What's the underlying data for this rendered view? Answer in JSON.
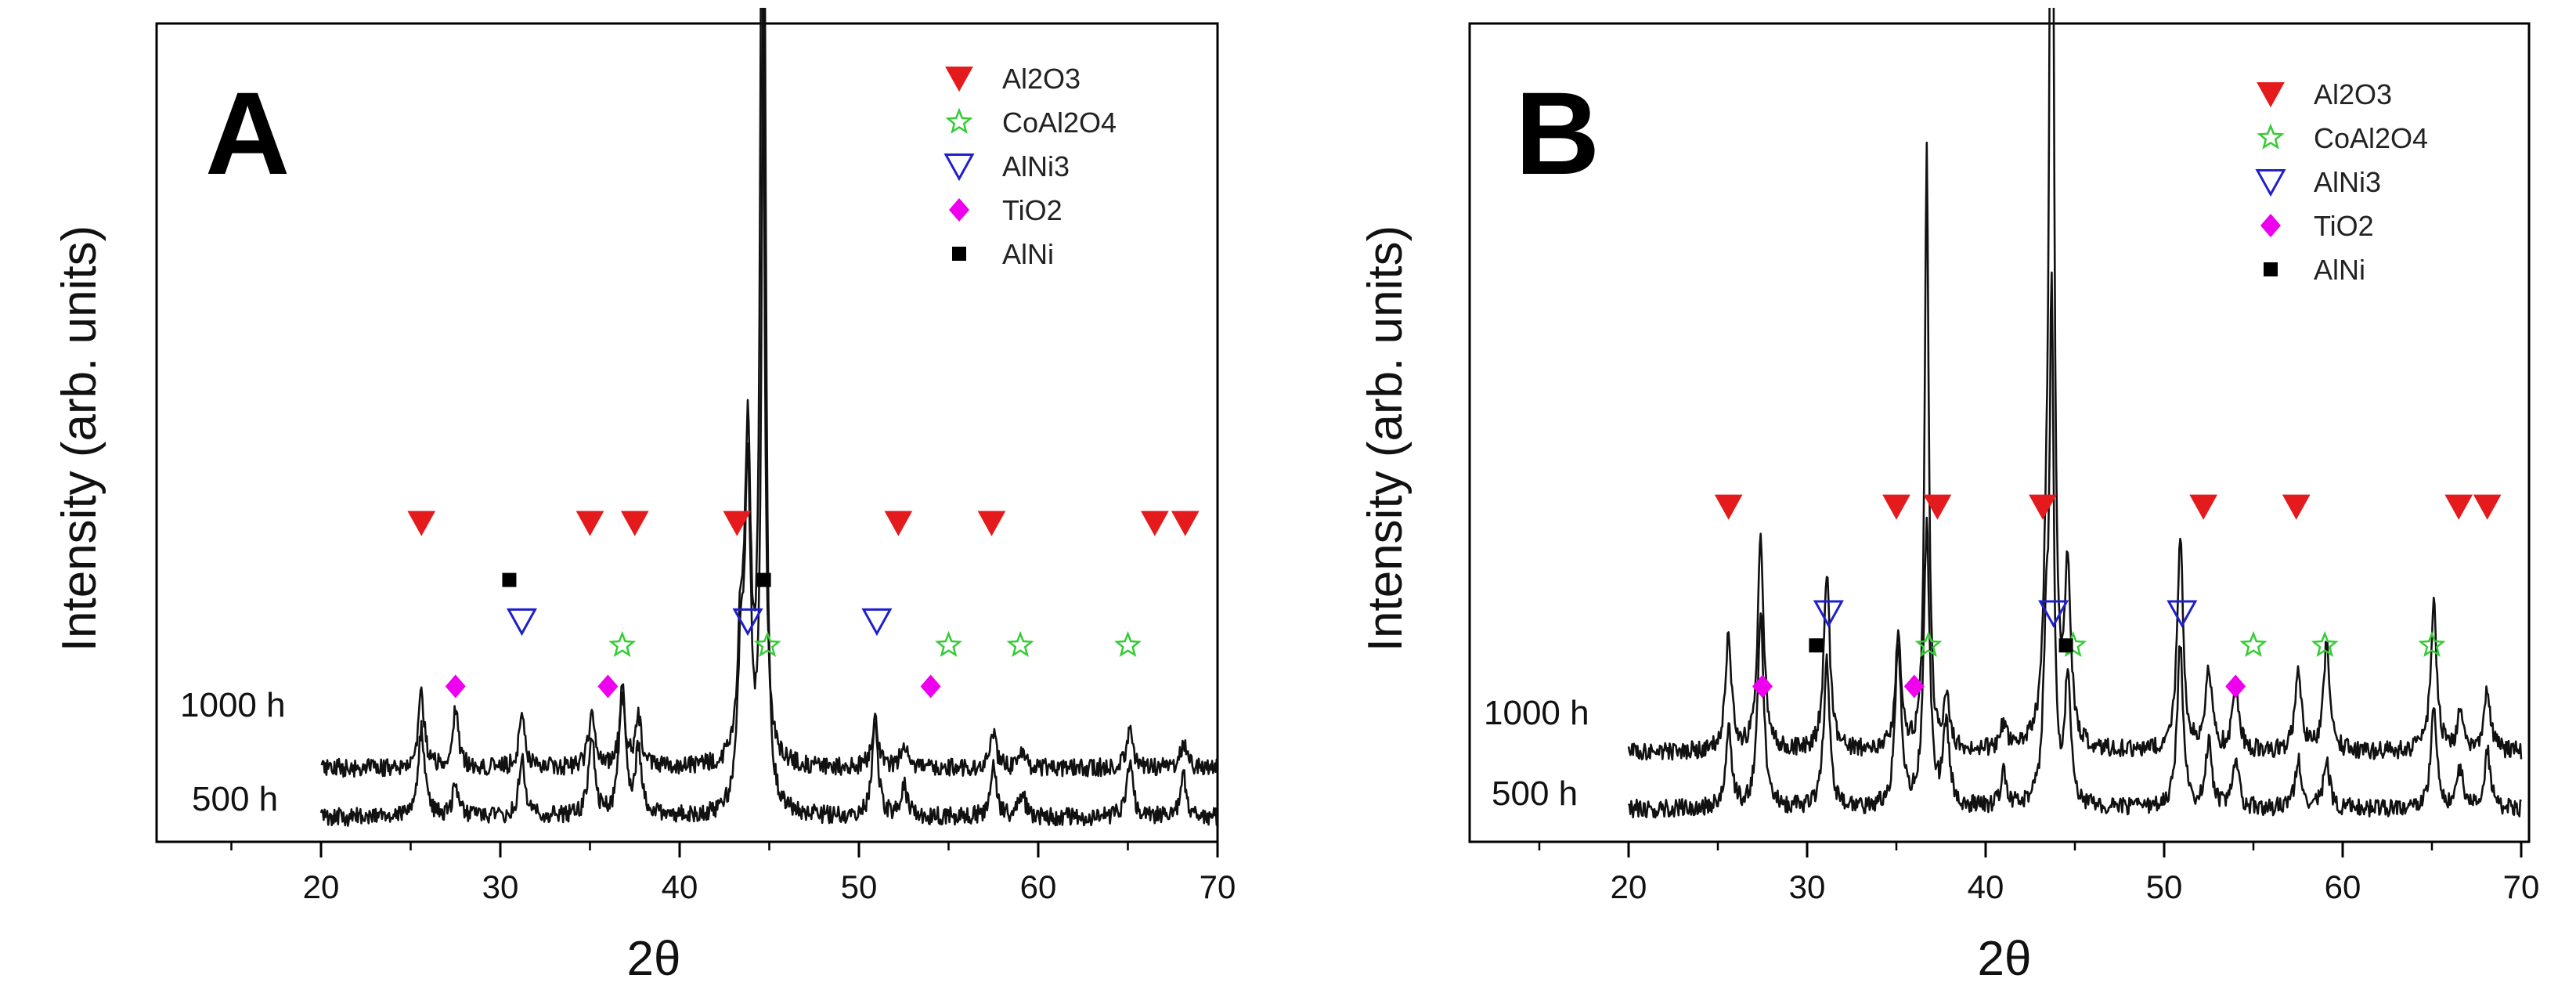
{
  "colors": {
    "Al2O3": "#e41a1c",
    "CoAl2O4": "#33cc33",
    "AlNi3": "#1f1fcc",
    "TiO2": "#ee00ee",
    "AlNi": "#000000",
    "trace": "#111111"
  },
  "chart_data": [
    {
      "type": "line",
      "panel": "A",
      "xlabel": "2θ",
      "ylabel": "Intensity (arb. units)",
      "xlim": [
        12,
        70
      ],
      "ylim": [
        0,
        100
      ],
      "xticks": [
        20,
        30,
        40,
        50,
        60,
        70
      ],
      "legend": {
        "placement": "top-right",
        "entries": [
          {
            "name": "Al2O3",
            "marker": "triangle-down-filled"
          },
          {
            "name": "CoAl2O4",
            "marker": "star-open"
          },
          {
            "name": "AlNi3",
            "marker": "triangle-down-open"
          },
          {
            "name": "TiO2",
            "marker": "diamond-filled"
          },
          {
            "name": "AlNi",
            "marker": "square-filled"
          }
        ]
      },
      "series": [
        {
          "name": "1000 h",
          "baseline": 9,
          "peaks": [
            [
              25.6,
              9
            ],
            [
              27.5,
              7
            ],
            [
              31.2,
              6
            ],
            [
              35.1,
              7
            ],
            [
              36.8,
              8
            ],
            [
              37.7,
              6
            ],
            [
              43.4,
              14
            ],
            [
              43.8,
              38
            ],
            [
              44.6,
              120
            ],
            [
              50.9,
              6
            ],
            [
              52.5,
              3
            ],
            [
              57.5,
              4
            ],
            [
              59.1,
              2
            ],
            [
              65.1,
              5
            ],
            [
              68.1,
              3
            ]
          ]
        },
        {
          "name": "500 h",
          "baseline": 3,
          "peaks": [
            [
              25.6,
              11
            ],
            [
              27.5,
              4
            ],
            [
              31.2,
              7
            ],
            [
              35.1,
              10
            ],
            [
              36.8,
              16
            ],
            [
              37.7,
              8
            ],
            [
              43.4,
              16
            ],
            [
              43.8,
              40
            ],
            [
              44.7,
              120
            ],
            [
              50.9,
              11
            ],
            [
              52.5,
              4
            ],
            [
              57.5,
              6
            ],
            [
              59.1,
              3
            ],
            [
              65.1,
              7
            ],
            [
              68.1,
              5
            ]
          ]
        }
      ],
      "phase_markers": {
        "Al2O3": {
          "x": [
            25.6,
            35.0,
            37.5,
            43.2,
            52.2,
            57.4,
            66.5,
            68.2
          ],
          "y": 39
        },
        "CoAl2O4": {
          "x": [
            36.8,
            44.9,
            55.0,
            59.0,
            65.0
          ],
          "y": 24
        },
        "AlNi3": {
          "x": [
            31.2,
            43.8,
            51.0
          ],
          "y": 27
        },
        "TiO2": {
          "x": [
            27.5,
            36.0,
            54.0
          ],
          "y": 19
        },
        "AlNi": {
          "x": [
            30.5,
            44.7
          ],
          "y": 32
        }
      }
    },
    {
      "type": "line",
      "panel": "B",
      "xlabel": "2θ",
      "ylabel": "Intensity (arb. units)",
      "xlim": [
        12,
        70
      ],
      "ylim": [
        0,
        100
      ],
      "xticks": [
        20,
        30,
        40,
        50,
        60,
        70
      ],
      "legend": {
        "placement": "top-right",
        "entries": [
          {
            "name": "Al2O3",
            "marker": "triangle-down-filled"
          },
          {
            "name": "CoAl2O4",
            "marker": "star-open"
          },
          {
            "name": "AlNi3",
            "marker": "triangle-down-open"
          },
          {
            "name": "TiO2",
            "marker": "diamond-filled"
          },
          {
            "name": "AlNi",
            "marker": "square-filled"
          }
        ]
      },
      "series": [
        {
          "name": "1000 h",
          "baseline": 11,
          "peaks": [
            [
              25.6,
              14
            ],
            [
              27.4,
              26
            ],
            [
              31.1,
              22
            ],
            [
              35.1,
              14
            ],
            [
              36.7,
              73
            ],
            [
              37.8,
              6
            ],
            [
              41.0,
              3
            ],
            [
              43.4,
              14
            ],
            [
              43.7,
              150
            ],
            [
              44.6,
              21
            ],
            [
              50.9,
              26
            ],
            [
              52.5,
              10
            ],
            [
              54.0,
              8
            ],
            [
              57.5,
              10
            ],
            [
              59.1,
              13
            ],
            [
              65.1,
              18
            ],
            [
              66.6,
              5
            ],
            [
              68.1,
              8
            ]
          ]
        },
        {
          "name": "500 h",
          "baseline": 4,
          "peaks": [
            [
              25.6,
              10
            ],
            [
              27.4,
              24
            ],
            [
              31.1,
              18
            ],
            [
              35.1,
              20
            ],
            [
              36.7,
              34
            ],
            [
              37.8,
              10
            ],
            [
              41.0,
              4
            ],
            [
              43.4,
              18
            ],
            [
              43.7,
              60
            ],
            [
              44.6,
              16
            ],
            [
              50.9,
              20
            ],
            [
              52.5,
              8
            ],
            [
              54.0,
              6
            ],
            [
              57.5,
              6
            ],
            [
              59.1,
              6
            ],
            [
              65.1,
              12
            ],
            [
              66.6,
              5
            ],
            [
              68.1,
              7
            ]
          ]
        }
      ],
      "phase_markers": {
        "Al2O3": {
          "x": [
            25.6,
            35.0,
            37.3,
            43.2,
            52.2,
            57.4,
            66.5,
            68.1
          ],
          "y": 41
        },
        "CoAl2O4": {
          "x": [
            36.8,
            44.9,
            55.0,
            59.0,
            65.0
          ],
          "y": 24
        },
        "AlNi3": {
          "x": [
            31.2,
            43.8,
            51.0
          ],
          "y": 28
        },
        "TiO2": {
          "x": [
            27.5,
            36.0,
            54.0
          ],
          "y": 19
        },
        "AlNi": {
          "x": [
            30.5,
            44.5
          ],
          "y": 24
        }
      }
    }
  ]
}
